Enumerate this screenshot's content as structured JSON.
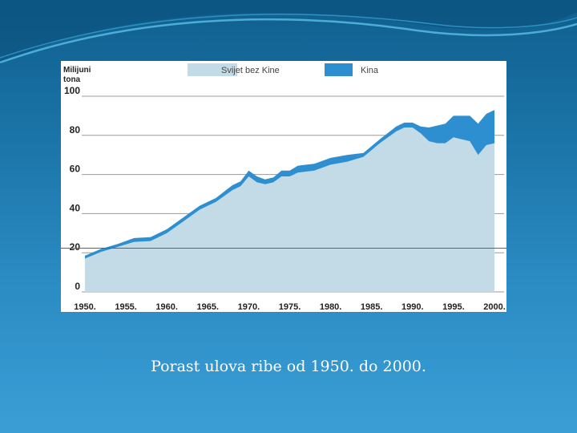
{
  "slide": {
    "caption": "Porast ulova ribe od 1950. do 2000."
  },
  "colors": {
    "svijet": "#c2dbe6",
    "kina": "#2e8fd0",
    "grid": "#9a9a9a"
  },
  "chart_data": {
    "type": "area",
    "stacked": true,
    "title": "",
    "ylabel": "Milijuni tona",
    "xlabel": "",
    "ylim": [
      0,
      100
    ],
    "xlim": [
      1950,
      2000
    ],
    "grid": true,
    "legend_position": "top",
    "x_ticks": [
      "1950.",
      "1955.",
      "1960.",
      "1965.",
      "1970.",
      "1975.",
      "1980.",
      "1985.",
      "1990.",
      "1995.",
      "2000."
    ],
    "y_ticks": [
      "100",
      "80",
      "60",
      "40",
      "20",
      "0"
    ],
    "x": [
      1950,
      1952,
      1954,
      1956,
      1958,
      1960,
      1962,
      1964,
      1966,
      1968,
      1969,
      1970,
      1971,
      1972,
      1973,
      1974,
      1975,
      1976,
      1978,
      1980,
      1982,
      1984,
      1986,
      1988,
      1989,
      1990,
      1991,
      1992,
      1993,
      1994,
      1995,
      1996,
      1997,
      1998,
      1999,
      2000
    ],
    "series": [
      {
        "name": "Svijet bez Kine",
        "values": [
          17,
          20.5,
          23,
          25.5,
          26,
          30,
          36,
          42,
          46,
          52,
          54,
          59,
          56,
          55,
          56,
          59,
          59,
          61,
          62,
          65,
          66.5,
          69,
          76,
          82,
          84,
          84,
          81,
          77,
          76,
          76,
          79,
          78,
          77,
          70,
          75,
          76
        ]
      },
      {
        "name": "Kina",
        "values": [
          1.5,
          1.5,
          1.5,
          2,
          2,
          2,
          2,
          2,
          2,
          2.5,
          2.5,
          3,
          3,
          2.5,
          2.5,
          3,
          3,
          3.5,
          3.5,
          3.5,
          3.5,
          2,
          2,
          2.5,
          2.5,
          2.5,
          3.5,
          7,
          9,
          10,
          11,
          12,
          13,
          16,
          16,
          17
        ]
      }
    ]
  }
}
